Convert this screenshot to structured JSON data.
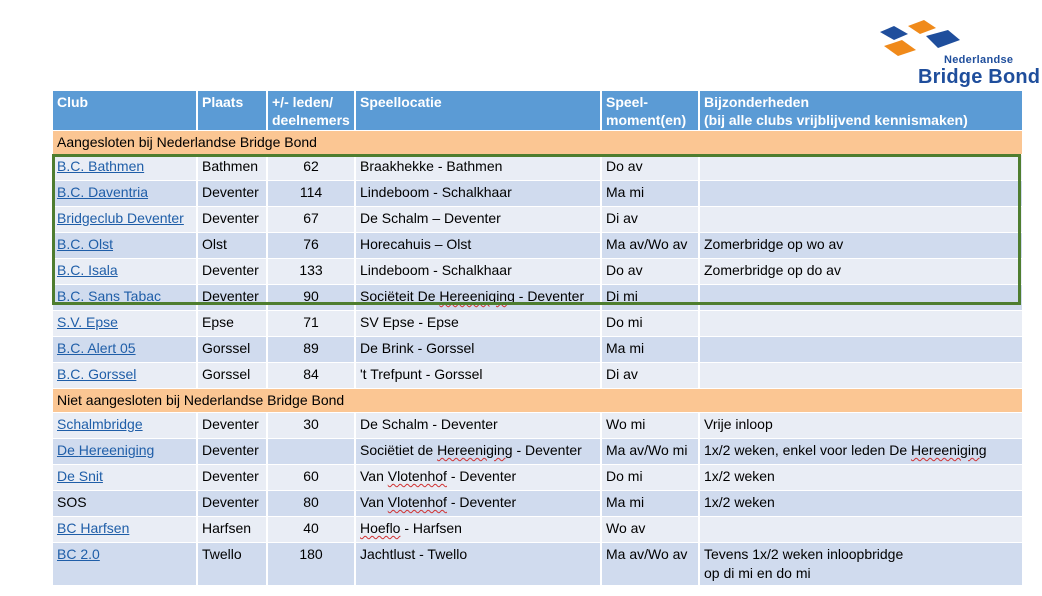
{
  "logo": {
    "line1": "Nederlandse",
    "line2": "Bridge Bond",
    "colors": {
      "orange": "#f08a1a",
      "blue": "#1f4e9c"
    }
  },
  "header": {
    "club": "Club",
    "plaats": "Plaats",
    "leden_1": "+/- leden/",
    "leden_2": "deelnemers",
    "speellocatie": "Speellocatie",
    "moment_1": "Speel-",
    "moment_2": "moment(en)",
    "bijz_1": "Bijzonderheden",
    "bijz_2": "(bij alle clubs vrijblijvend kennismaken)"
  },
  "section1": "Aangesloten bij Nederlandse Bridge Bond",
  "section2": "Niet aangesloten bij Nederlandse Bridge Bond",
  "rows": [
    {
      "club": "B.C. Bathmen",
      "plaats": "Bathmen",
      "leden": "62",
      "locatie": "Braakhekke - Bathmen",
      "moment": "Do av",
      "bijz": ""
    },
    {
      "club": "B.C. Daventria",
      "plaats": "Deventer",
      "leden": "114",
      "locatie": "Lindeboom - Schalkhaar",
      "moment": "Ma mi",
      "bijz": ""
    },
    {
      "club": "Bridgeclub Deventer",
      "plaats": "Deventer",
      "leden": "67",
      "locatie": "De Schalm – Deventer",
      "moment": "Di av",
      "bijz": ""
    },
    {
      "club": "B.C. Olst",
      "plaats": "Olst",
      "leden": "76",
      "locatie": "Horecahuis – Olst",
      "moment": "Ma av/Wo av",
      "bijz": "Zomerbridge op wo av"
    },
    {
      "club": "B.C. Isala",
      "plaats": "Deventer",
      "leden": "133",
      "locatie": "Lindeboom - Schalkhaar",
      "moment": "Do av",
      "bijz": "Zomerbridge op do av"
    },
    {
      "club": "B.C. Sans Tabac",
      "plaats": "Deventer",
      "leden": "90",
      "locatie_a": "Sociëteit De ",
      "locatie_b": "Hereeniging",
      "locatie_c": " - Deventer",
      "moment": "Di mi",
      "bijz": ""
    },
    {
      "club": "S.V. Epse",
      "plaats": "Epse",
      "leden": "71",
      "locatie": "SV Epse - Epse",
      "moment": "Do mi",
      "bijz": ""
    },
    {
      "club": "B.C. Alert 05",
      "plaats": "Gorssel",
      "leden": "89",
      "locatie": "De Brink - Gorssel",
      "moment": "Ma mi",
      "bijz": ""
    },
    {
      "club": "B.C. Gorssel",
      "plaats": "Gorssel",
      "leden": "84",
      "locatie": "'t Trefpunt - Gorssel",
      "moment": "Di av",
      "bijz": ""
    },
    {
      "club": "Schalmbridge",
      "plaats": "Deventer",
      "leden": "30",
      "locatie": "De Schalm - Deventer",
      "moment": "Wo mi",
      "bijz": "Vrije inloop"
    },
    {
      "club_a": "De ",
      "club_b": "Hereeniging",
      "plaats": "Deventer",
      "leden": "",
      "locatie_a": "Sociëtiet de ",
      "locatie_b": "Hereeniging",
      "locatie_c": " - Deventer",
      "moment": "Ma av/Wo mi",
      "bijz_a": "1x/2 weken, enkel voor leden De ",
      "bijz_b": "Hereeniging"
    },
    {
      "club": "De Snit",
      "plaats": "Deventer",
      "leden": "60",
      "locatie_b": "Van ",
      "locatie_w": "Vlotenhof",
      "locatie_c": " - Deventer",
      "moment": "Do mi",
      "bijz": "1x/2 weken"
    },
    {
      "club": "SOS",
      "plaats": "Deventer",
      "leden": "80",
      "locatie_b": "Van ",
      "locatie_w": "Vlotenhof",
      "locatie_c": " - Deventer",
      "moment": "Ma mi",
      "bijz": "1x/2 weken"
    },
    {
      "club": "BC Harfsen",
      "plaats": "Harfsen",
      "leden": "40",
      "locatie_w": "Hoeflo",
      "locatie_c": " - Harfsen",
      "moment": "Wo av",
      "bijz": ""
    },
    {
      "club": "BC 2.0",
      "plaats": "Twello",
      "leden": "180",
      "locatie": "Jachtlust - Twello",
      "moment": "Ma av/Wo av",
      "bijz_1": "Tevens 1x/2 weken inloopbridge",
      "bijz_2": "op di mi en do mi"
    }
  ]
}
